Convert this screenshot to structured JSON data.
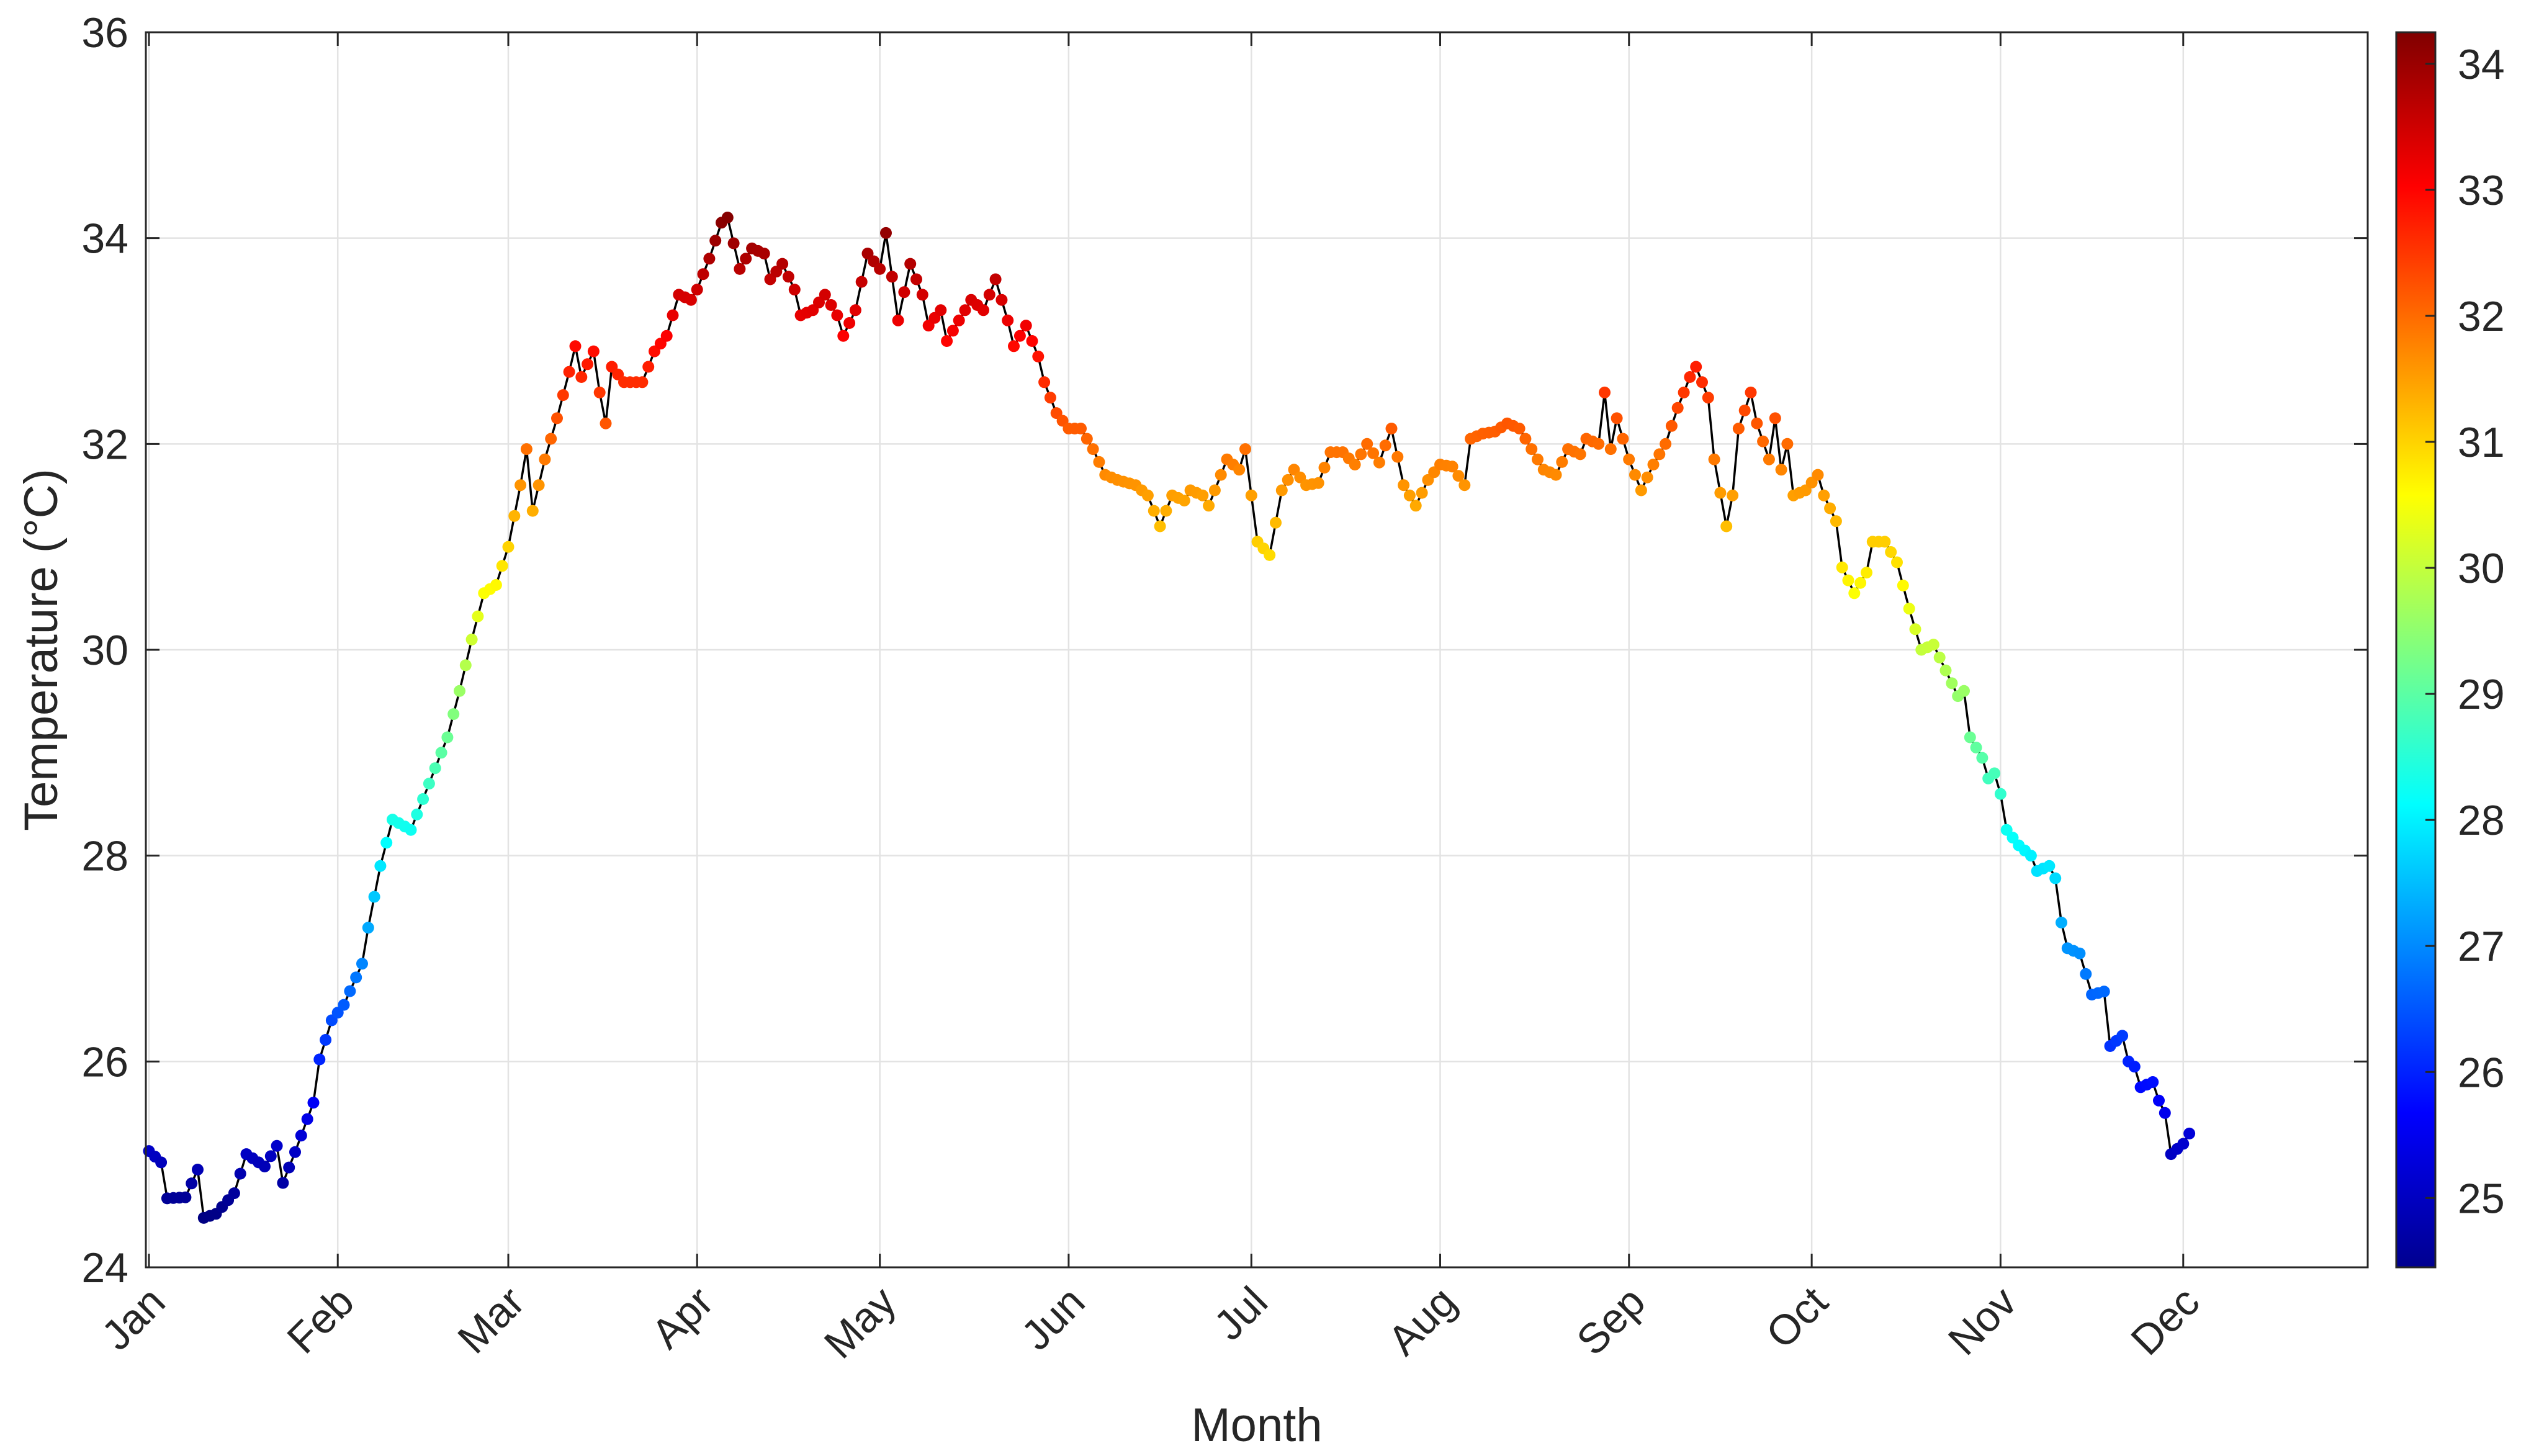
{
  "chart_data": {
    "type": "scatter",
    "xlabel": "Month",
    "ylabel": "Temperature (°C)",
    "ylim": [
      24,
      36
    ],
    "xlim": [
      1,
      366
    ],
    "grid": true,
    "x_ticks": [
      {
        "label": "Jan",
        "day": 1
      },
      {
        "label": "Feb",
        "day": 32
      },
      {
        "label": "Mar",
        "day": 60
      },
      {
        "label": "Apr",
        "day": 91
      },
      {
        "label": "May",
        "day": 121
      },
      {
        "label": "Jun",
        "day": 152
      },
      {
        "label": "Jul",
        "day": 182
      },
      {
        "label": "Aug",
        "day": 213
      },
      {
        "label": "Sep",
        "day": 244
      },
      {
        "label": "Oct",
        "day": 274
      },
      {
        "label": "Nov",
        "day": 305
      },
      {
        "label": "Dec",
        "day": 335
      }
    ],
    "y_ticks": [
      24,
      26,
      28,
      30,
      32,
      34,
      36
    ],
    "colorbar": {
      "colormap": "jet",
      "clim": [
        24.45,
        34.25
      ],
      "ticks": [
        25,
        26,
        27,
        28,
        29,
        30,
        31,
        32,
        33,
        34
      ]
    },
    "line_color": "#000000",
    "anchors": [
      [
        1,
        25.13
      ],
      [
        3,
        25.02
      ],
      [
        4,
        24.67
      ],
      [
        7,
        24.68
      ],
      [
        9,
        24.95
      ],
      [
        10,
        24.48
      ],
      [
        12,
        24.52
      ],
      [
        15,
        24.72
      ],
      [
        17,
        25.1
      ],
      [
        20,
        24.98
      ],
      [
        22,
        25.18
      ],
      [
        23,
        24.82
      ],
      [
        25,
        25.12
      ],
      [
        28,
        25.6
      ],
      [
        29,
        26.02
      ],
      [
        31,
        26.4
      ],
      [
        33,
        26.55
      ],
      [
        36,
        26.95
      ],
      [
        37,
        27.3
      ],
      [
        39,
        27.9
      ],
      [
        41,
        28.35
      ],
      [
        44,
        28.25
      ],
      [
        46,
        28.55
      ],
      [
        48,
        28.85
      ],
      [
        50,
        29.15
      ],
      [
        52,
        29.6
      ],
      [
        54,
        30.1
      ],
      [
        56,
        30.55
      ],
      [
        58,
        30.63
      ],
      [
        60,
        31.0
      ],
      [
        62,
        31.6
      ],
      [
        63,
        31.95
      ],
      [
        64,
        31.35
      ],
      [
        66,
        31.85
      ],
      [
        68,
        32.25
      ],
      [
        70,
        32.7
      ],
      [
        71,
        32.95
      ],
      [
        72,
        32.65
      ],
      [
        74,
        32.9
      ],
      [
        75,
        32.5
      ],
      [
        76,
        32.2
      ],
      [
        77,
        32.75
      ],
      [
        79,
        32.6
      ],
      [
        82,
        32.6
      ],
      [
        84,
        32.9
      ],
      [
        86,
        33.05
      ],
      [
        88,
        33.45
      ],
      [
        90,
        33.4
      ],
      [
        91,
        33.5
      ],
      [
        93,
        33.8
      ],
      [
        95,
        34.15
      ],
      [
        96,
        34.2
      ],
      [
        97,
        33.95
      ],
      [
        98,
        33.7
      ],
      [
        100,
        33.9
      ],
      [
        102,
        33.85
      ],
      [
        103,
        33.6
      ],
      [
        105,
        33.75
      ],
      [
        107,
        33.5
      ],
      [
        108,
        33.25
      ],
      [
        110,
        33.3
      ],
      [
        112,
        33.45
      ],
      [
        114,
        33.25
      ],
      [
        115,
        33.05
      ],
      [
        117,
        33.3
      ],
      [
        119,
        33.85
      ],
      [
        121,
        33.7
      ],
      [
        122,
        34.05
      ],
      [
        124,
        33.2
      ],
      [
        126,
        33.75
      ],
      [
        128,
        33.45
      ],
      [
        129,
        33.15
      ],
      [
        131,
        33.3
      ],
      [
        132,
        33.0
      ],
      [
        134,
        33.2
      ],
      [
        136,
        33.4
      ],
      [
        138,
        33.3
      ],
      [
        140,
        33.6
      ],
      [
        142,
        33.2
      ],
      [
        143,
        32.95
      ],
      [
        145,
        33.15
      ],
      [
        147,
        32.85
      ],
      [
        148,
        32.6
      ],
      [
        150,
        32.3
      ],
      [
        152,
        32.15
      ],
      [
        154,
        32.15
      ],
      [
        156,
        31.95
      ],
      [
        158,
        31.7
      ],
      [
        160,
        31.65
      ],
      [
        163,
        31.6
      ],
      [
        165,
        31.5
      ],
      [
        167,
        31.2
      ],
      [
        169,
        31.5
      ],
      [
        171,
        31.45
      ],
      [
        172,
        31.55
      ],
      [
        174,
        31.5
      ],
      [
        175,
        31.4
      ],
      [
        177,
        31.7
      ],
      [
        178,
        31.85
      ],
      [
        180,
        31.75
      ],
      [
        181,
        31.95
      ],
      [
        183,
        31.05
      ],
      [
        185,
        30.92
      ],
      [
        187,
        31.55
      ],
      [
        189,
        31.75
      ],
      [
        191,
        31.6
      ],
      [
        193,
        31.62
      ],
      [
        195,
        31.92
      ],
      [
        197,
        31.92
      ],
      [
        199,
        31.8
      ],
      [
        201,
        32.0
      ],
      [
        203,
        31.82
      ],
      [
        205,
        32.15
      ],
      [
        207,
        31.6
      ],
      [
        209,
        31.4
      ],
      [
        211,
        31.65
      ],
      [
        213,
        31.8
      ],
      [
        215,
        31.78
      ],
      [
        217,
        31.6
      ],
      [
        218,
        32.05
      ],
      [
        220,
        32.1
      ],
      [
        222,
        32.12
      ],
      [
        224,
        32.2
      ],
      [
        226,
        32.15
      ],
      [
        228,
        31.95
      ],
      [
        230,
        31.75
      ],
      [
        232,
        31.7
      ],
      [
        234,
        31.95
      ],
      [
        236,
        31.9
      ],
      [
        237,
        32.05
      ],
      [
        239,
        32.0
      ],
      [
        240,
        32.5
      ],
      [
        241,
        31.95
      ],
      [
        242,
        32.25
      ],
      [
        244,
        31.85
      ],
      [
        246,
        31.55
      ],
      [
        248,
        31.8
      ],
      [
        250,
        32.0
      ],
      [
        252,
        32.35
      ],
      [
        254,
        32.65
      ],
      [
        255,
        32.75
      ],
      [
        257,
        32.45
      ],
      [
        258,
        31.85
      ],
      [
        260,
        31.2
      ],
      [
        261,
        31.5
      ],
      [
        262,
        32.15
      ],
      [
        264,
        32.5
      ],
      [
        265,
        32.2
      ],
      [
        267,
        31.85
      ],
      [
        268,
        32.25
      ],
      [
        269,
        31.75
      ],
      [
        270,
        32.0
      ],
      [
        271,
        31.5
      ],
      [
        273,
        31.55
      ],
      [
        275,
        31.7
      ],
      [
        276,
        31.5
      ],
      [
        278,
        31.25
      ],
      [
        279,
        30.8
      ],
      [
        281,
        30.55
      ],
      [
        283,
        30.75
      ],
      [
        284,
        31.05
      ],
      [
        286,
        31.05
      ],
      [
        288,
        30.85
      ],
      [
        290,
        30.4
      ],
      [
        292,
        30.0
      ],
      [
        294,
        30.05
      ],
      [
        296,
        29.8
      ],
      [
        298,
        29.55
      ],
      [
        299,
        29.6
      ],
      [
        300,
        29.15
      ],
      [
        302,
        28.95
      ],
      [
        303,
        28.75
      ],
      [
        304,
        28.8
      ],
      [
        305,
        28.6
      ],
      [
        306,
        28.25
      ],
      [
        308,
        28.1
      ],
      [
        310,
        28.0
      ],
      [
        311,
        27.85
      ],
      [
        313,
        27.9
      ],
      [
        314,
        27.78
      ],
      [
        315,
        27.35
      ],
      [
        316,
        27.1
      ],
      [
        318,
        27.05
      ],
      [
        319,
        26.85
      ],
      [
        320,
        26.65
      ],
      [
        322,
        26.68
      ],
      [
        323,
        26.15
      ],
      [
        325,
        26.25
      ],
      [
        326,
        26.0
      ],
      [
        327,
        25.95
      ],
      [
        328,
        25.75
      ],
      [
        330,
        25.8
      ],
      [
        331,
        25.62
      ],
      [
        332,
        25.5
      ],
      [
        333,
        25.1
      ],
      [
        335,
        25.2
      ],
      [
        336,
        25.3
      ]
    ]
  }
}
